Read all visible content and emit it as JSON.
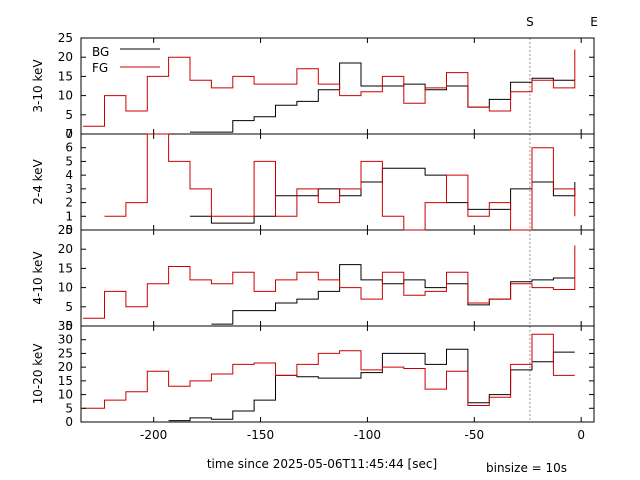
{
  "chart_data": {
    "type": "line",
    "xlabel": "time since 2025-05-06T11:45:44 [sec]",
    "binsize_label": "binsize = 10s",
    "xlim": [
      -234,
      6
    ],
    "x_ticks": [
      -200,
      -150,
      -100,
      -50,
      0
    ],
    "markers": [
      {
        "label": "S",
        "x": -24,
        "line": true
      },
      {
        "label": "E",
        "x": 6,
        "line": false
      }
    ],
    "legend": {
      "placement": "top-left",
      "entries": [
        {
          "name": "BG",
          "color": "#000000"
        },
        {
          "name": "FG",
          "color": "#cc0000"
        }
      ]
    },
    "panels": [
      {
        "ylabel": "3-10 keV",
        "ylim": [
          0,
          25
        ],
        "yticks": [
          0,
          5,
          10,
          15,
          20,
          25
        ],
        "series": [
          {
            "name": "BG",
            "color": "#000000",
            "edges": [
              -183,
              -163,
              -153,
              -143,
              -133,
              -123,
              -113,
              -103,
              -93,
              -83,
              -73,
              -63,
              -53,
              -43,
              -33,
              -23,
              -13,
              -3
            ],
            "values": [
              0.5,
              3.5,
              4.5,
              7.5,
              8.5,
              11.5,
              18.5,
              12.5,
              12.5,
              13,
              11.5,
              12.5,
              7,
              9,
              13.5,
              14.5,
              14
            ]
          },
          {
            "name": "FG",
            "color": "#cc0000",
            "edges": [
              -233,
              -223,
              -213,
              -203,
              -193,
              -183,
              -173,
              -163,
              -153,
              -143,
              -133,
              -123,
              -113,
              -103,
              -93,
              -83,
              -73,
              -63,
              -53,
              -43,
              -33,
              -23,
              -13,
              -3
            ],
            "values": [
              2,
              10,
              6,
              15,
              20,
              14,
              12,
              15,
              13,
              13,
              17,
              13,
              10,
              11,
              15,
              8,
              12,
              16,
              7,
              6,
              11,
              14,
              12
            ],
            "end_spike": 22
          }
        ]
      },
      {
        "ylabel": "2-4 keV",
        "ylim": [
          0,
          7
        ],
        "yticks": [
          0,
          1,
          2,
          3,
          4,
          5,
          6,
          7
        ],
        "series": [
          {
            "name": "BG",
            "color": "#000000",
            "edges": [
              -183,
              -173,
              -153,
              -143,
              -133,
              -123,
              -113,
              -103,
              -93,
              -83,
              -73,
              -63,
              -53,
              -43,
              -33,
              -23,
              -13,
              -3
            ],
            "values": [
              1,
              0.5,
              1,
              2.5,
              2.5,
              3,
              2.5,
              3.5,
              4.5,
              4.5,
              4,
              2,
              1.5,
              1.5,
              3,
              3.5,
              2.5
            ],
            "end_spike": 3.5
          },
          {
            "name": "FG",
            "color": "#cc0000",
            "edges": [
              -223,
              -213,
              -203,
              -193,
              -183,
              -173,
              -163,
              -153,
              -143,
              -133,
              -123,
              -113,
              -103,
              -93,
              -83,
              -73,
              -63,
              -53,
              -43,
              -33,
              -23,
              -13,
              -3
            ],
            "values": [
              1,
              2,
              7,
              5,
              3,
              1,
              1,
              5,
              1,
              3,
              2,
              3,
              5,
              1,
              0,
              2,
              4,
              1,
              2,
              0,
              6,
              3
            ],
            "end_spike": 1
          }
        ]
      },
      {
        "ylabel": "4-10 keV",
        "ylim": [
          0,
          25
        ],
        "yticks": [
          0,
          5,
          10,
          15,
          20,
          25
        ],
        "series": [
          {
            "name": "BG",
            "color": "#000000",
            "edges": [
              -173,
              -163,
              -143,
              -133,
              -123,
              -113,
              -103,
              -93,
              -83,
              -73,
              -63,
              -53,
              -43,
              -33,
              -23,
              -13,
              -3
            ],
            "values": [
              0.5,
              4,
              6,
              7,
              9,
              16,
              12,
              11,
              12,
              10,
              11,
              5.5,
              7,
              11.5,
              12,
              12.5
            ]
          },
          {
            "name": "FG",
            "color": "#cc0000",
            "edges": [
              -233,
              -223,
              -213,
              -203,
              -193,
              -183,
              -173,
              -163,
              -153,
              -143,
              -133,
              -123,
              -113,
              -103,
              -93,
              -83,
              -73,
              -63,
              -53,
              -43,
              -33,
              -23,
              -13,
              -3
            ],
            "values": [
              2,
              9,
              5,
              11,
              15.5,
              12,
              11,
              14,
              9,
              12,
              14,
              12,
              10,
              7,
              14,
              8,
              9,
              14,
              6,
              7,
              11,
              10,
              9.5
            ],
            "end_spike": 21
          }
        ]
      },
      {
        "ylabel": "10-20 keV",
        "ylim": [
          0,
          35
        ],
        "yticks": [
          0,
          5,
          10,
          15,
          20,
          25,
          30,
          35
        ],
        "series": [
          {
            "name": "BG",
            "color": "#000000",
            "edges": [
              -193,
              -183,
              -173,
              -163,
              -153,
              -143,
              -133,
              -123,
              -113,
              -103,
              -93,
              -83,
              -73,
              -63,
              -53,
              -43,
              -33,
              -23,
              -13,
              -3
            ],
            "values": [
              0.5,
              1.5,
              1,
              4,
              8,
              17,
              16.5,
              16,
              16,
              18,
              25,
              25,
              21,
              26.5,
              7,
              10,
              19,
              22,
              25.5
            ]
          },
          {
            "name": "FG",
            "color": "#cc0000",
            "edges": [
              -233,
              -223,
              -213,
              -203,
              -193,
              -183,
              -173,
              -163,
              -153,
              -143,
              -133,
              -123,
              -113,
              -103,
              -93,
              -83,
              -73,
              -63,
              -53,
              -43,
              -33,
              -23,
              -13,
              -3
            ],
            "values": [
              5,
              8,
              11,
              18.5,
              13,
              15,
              17.5,
              21,
              21.5,
              17,
              21,
              25,
              26,
              19,
              20,
              19.5,
              12,
              18.5,
              6,
              9,
              21,
              32,
              17
            ]
          }
        ]
      }
    ]
  }
}
